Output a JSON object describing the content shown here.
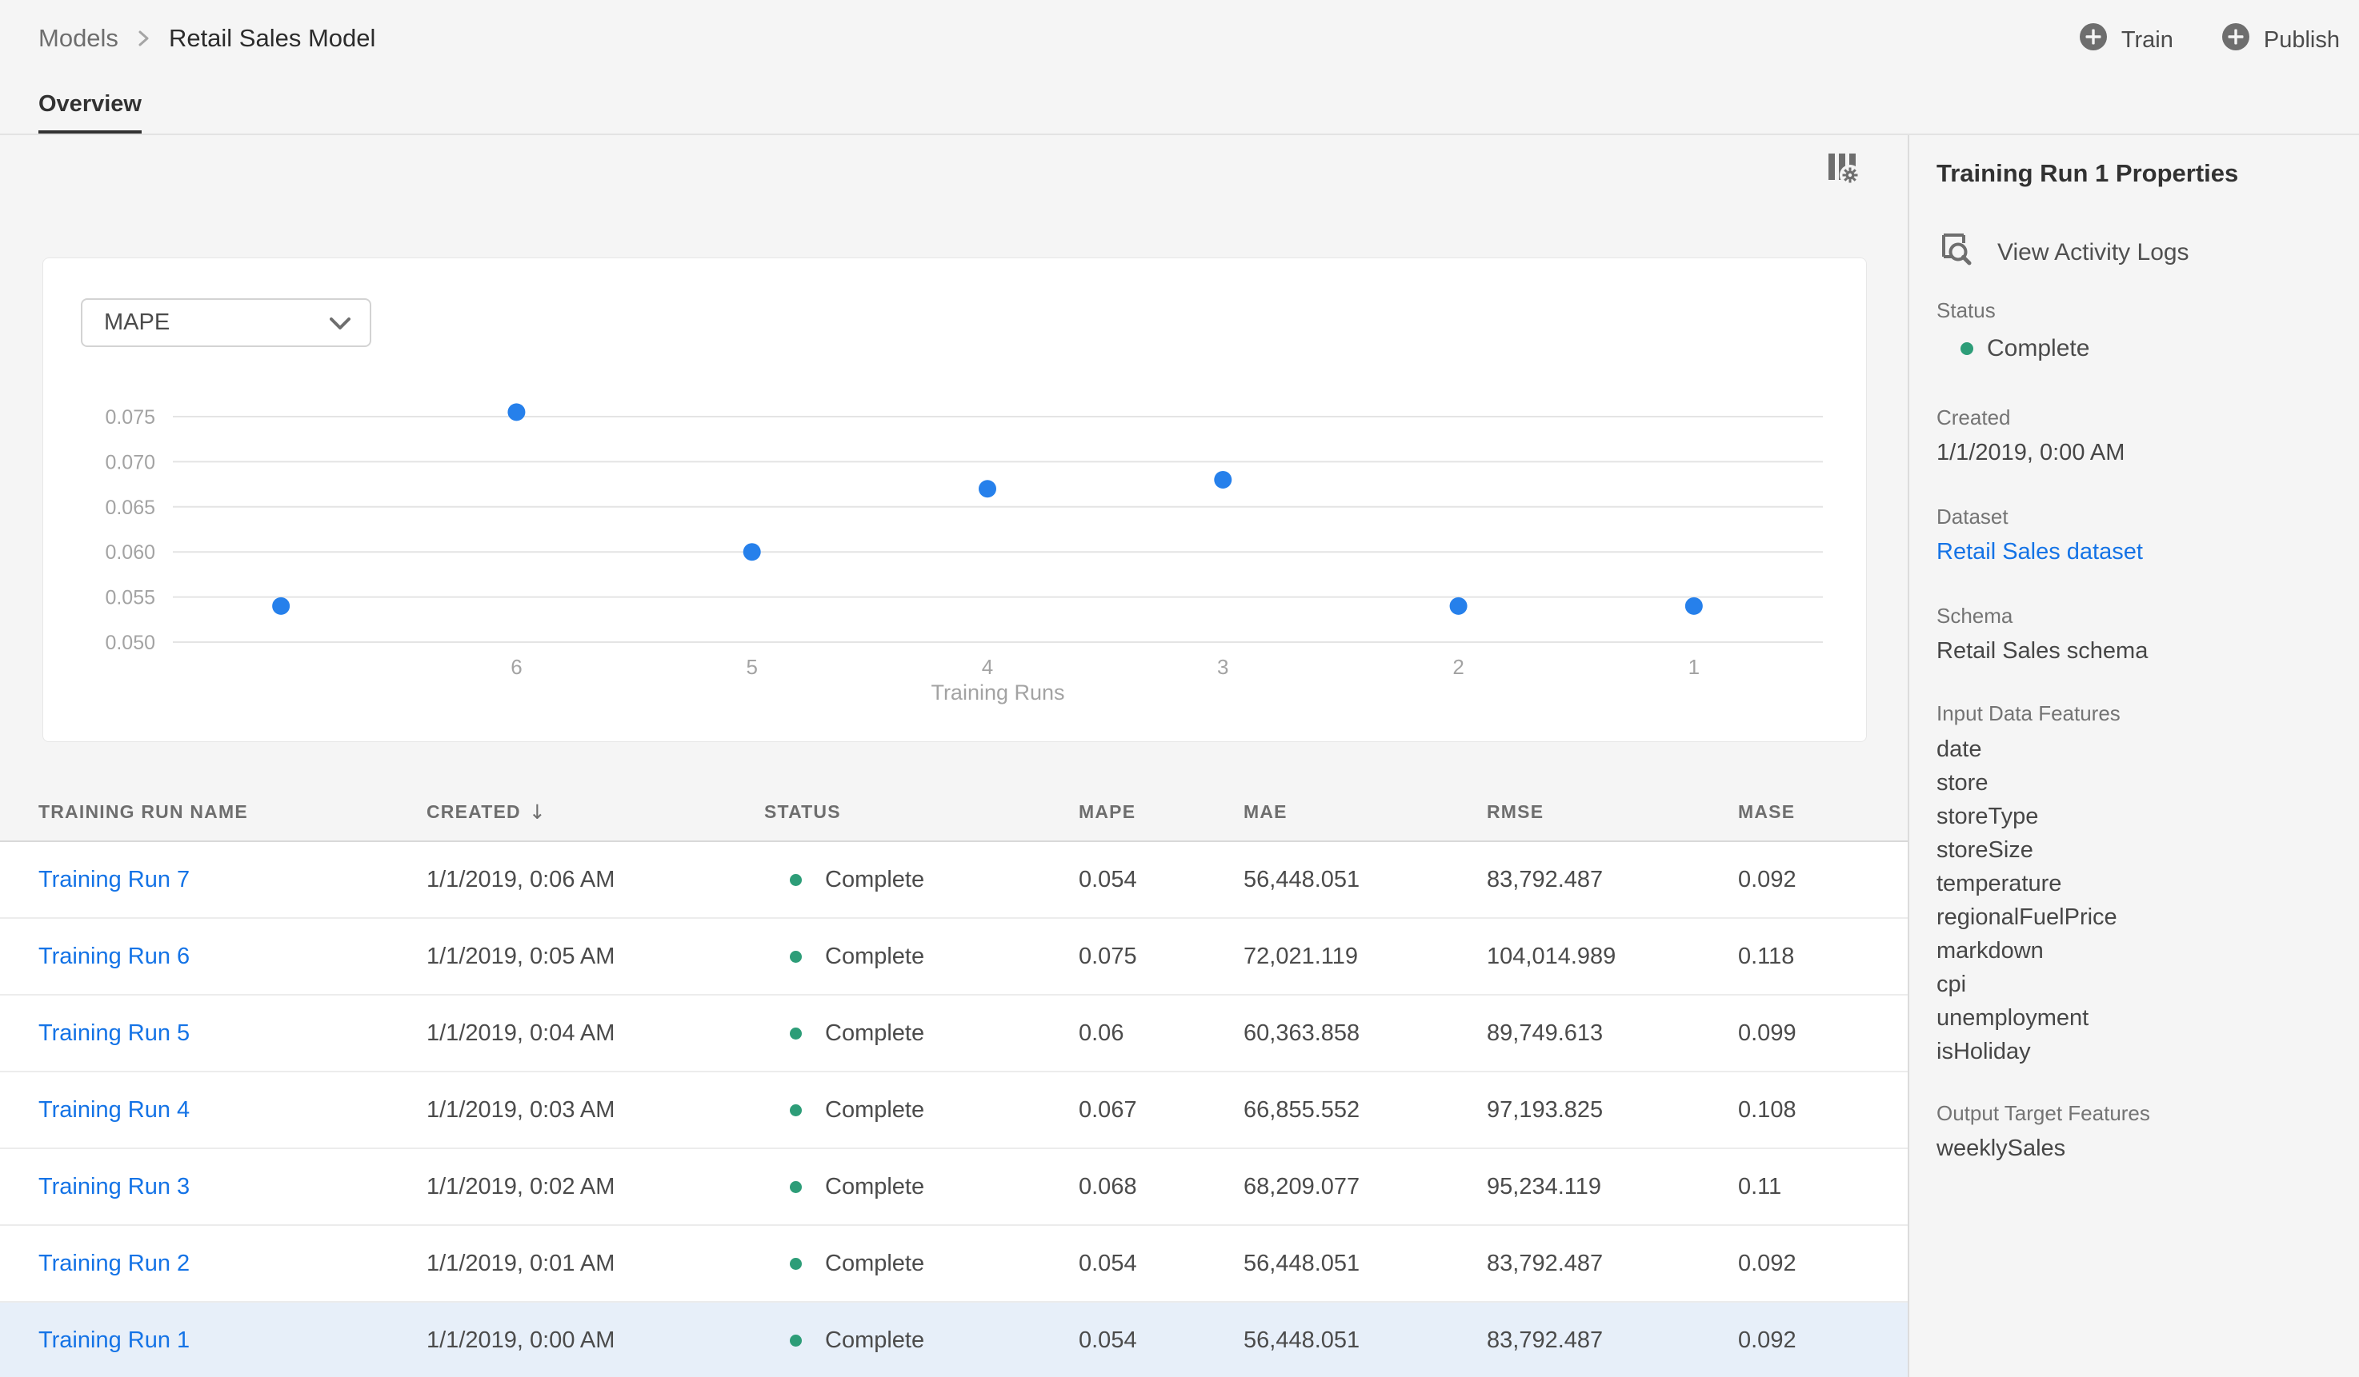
{
  "breadcrumb": {
    "root": "Models",
    "current": "Retail Sales Model"
  },
  "actions": {
    "train": "Train",
    "publish": "Publish"
  },
  "tabs": {
    "overview": "Overview"
  },
  "chart": {
    "type": "scatter",
    "metric_selector": "MAPE",
    "x_axis_title": "Training Runs",
    "y_min": 0.05,
    "y_max": 0.075,
    "y_ticks": [
      "0.075",
      "0.070",
      "0.065",
      "0.060",
      "0.055",
      "0.050"
    ],
    "points": [
      {
        "run": 7,
        "x_label": "",
        "mape": 0.054
      },
      {
        "run": 6,
        "x_label": "6",
        "mape": 0.0755
      },
      {
        "run": 5,
        "x_label": "5",
        "mape": 0.06
      },
      {
        "run": 4,
        "x_label": "4",
        "mape": 0.067
      },
      {
        "run": 3,
        "x_label": "3",
        "mape": 0.068
      },
      {
        "run": 2,
        "x_label": "2",
        "mape": 0.054
      },
      {
        "run": 1,
        "x_label": "1",
        "mape": 0.054
      }
    ]
  },
  "table": {
    "headers": {
      "name": "TRAINING RUN NAME",
      "created": "CREATED",
      "status": "STATUS",
      "mape": "MAPE",
      "mae": "MAE",
      "rmse": "RMSE",
      "mase": "MASE"
    },
    "sort_icon": "↓",
    "rows": [
      {
        "name": "Training Run 7",
        "created": "1/1/2019, 0:06 AM",
        "status": "Complete",
        "mape": "0.054",
        "mae": "56,448.051",
        "rmse": "83,792.487",
        "mase": "0.092",
        "selected": false
      },
      {
        "name": "Training Run 6",
        "created": "1/1/2019, 0:05 AM",
        "status": "Complete",
        "mape": "0.075",
        "mae": "72,021.119",
        "rmse": "104,014.989",
        "mase": "0.118",
        "selected": false
      },
      {
        "name": "Training Run 5",
        "created": "1/1/2019, 0:04 AM",
        "status": "Complete",
        "mape": "0.06",
        "mae": "60,363.858",
        "rmse": "89,749.613",
        "mase": "0.099",
        "selected": false
      },
      {
        "name": "Training Run 4",
        "created": "1/1/2019, 0:03 AM",
        "status": "Complete",
        "mape": "0.067",
        "mae": "66,855.552",
        "rmse": "97,193.825",
        "mase": "0.108",
        "selected": false
      },
      {
        "name": "Training Run 3",
        "created": "1/1/2019, 0:02 AM",
        "status": "Complete",
        "mape": "0.068",
        "mae": "68,209.077",
        "rmse": "95,234.119",
        "mase": "0.11",
        "selected": false
      },
      {
        "name": "Training Run 2",
        "created": "1/1/2019, 0:01 AM",
        "status": "Complete",
        "mape": "0.054",
        "mae": "56,448.051",
        "rmse": "83,792.487",
        "mase": "0.092",
        "selected": false
      },
      {
        "name": "Training Run 1",
        "created": "1/1/2019, 0:00 AM",
        "status": "Complete",
        "mape": "0.054",
        "mae": "56,448.051",
        "rmse": "83,792.487",
        "mase": "0.092",
        "selected": true
      }
    ]
  },
  "panel": {
    "title": "Training Run 1 Properties",
    "view_activity_logs": "View Activity Logs",
    "status_label": "Status",
    "status_value": "Complete",
    "created_label": "Created",
    "created_value": "1/1/2019, 0:00 AM",
    "dataset_label": "Dataset",
    "dataset_value": "Retail Sales dataset",
    "schema_label": "Schema",
    "schema_value": "Retail Sales schema",
    "input_features_label": "Input Data Features",
    "input_features": [
      "date",
      "store",
      "storeType",
      "storeSize",
      "temperature",
      "regionalFuelPrice",
      "markdown",
      "cpi",
      "unemployment",
      "isHoliday"
    ],
    "output_features_label": "Output Target Features",
    "output_features": [
      "weeklySales"
    ]
  },
  "colors": {
    "accent_blue": "#1473e6",
    "point_blue": "#2680eb",
    "status_green": "#2d9d78",
    "selected_row_bg": "#e7eff9"
  }
}
